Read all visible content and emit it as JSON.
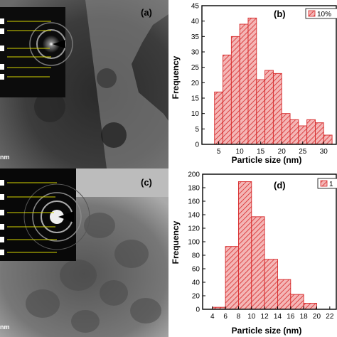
{
  "panels": {
    "a": {
      "label": "(a)",
      "scalebar_text": "nm"
    },
    "c": {
      "label": "(c)",
      "scalebar_text": "nm"
    }
  },
  "chart_data": [
    {
      "type": "bar",
      "panel_label": "(b)",
      "legend": "10%",
      "xlabel": "Particle size (nm)",
      "ylabel": "Frequency",
      "xlim": [
        1,
        33
      ],
      "ylim": [
        0,
        45
      ],
      "xticks": [
        5,
        10,
        15,
        20,
        25,
        30
      ],
      "yticks": [
        0,
        5,
        10,
        15,
        20,
        25,
        30,
        35,
        40,
        45
      ],
      "bin_width": 2,
      "bins_start": [
        4,
        6,
        8,
        10,
        12,
        14,
        16,
        18,
        20,
        22,
        24,
        26,
        28,
        30
      ],
      "values": [
        17,
        29,
        35,
        39,
        41,
        21,
        24,
        23,
        10,
        8,
        6,
        8,
        7,
        3
      ],
      "color": "#d62728"
    },
    {
      "type": "bar",
      "panel_label": "(d)",
      "legend": "1",
      "xlabel": "Particle size (nm)",
      "ylabel": "Frequency",
      "xlim": [
        2.5,
        23
      ],
      "ylim": [
        0,
        200
      ],
      "xticks": [
        4,
        6,
        8,
        10,
        12,
        14,
        16,
        18,
        20,
        22
      ],
      "yticks": [
        0,
        20,
        40,
        60,
        80,
        100,
        120,
        140,
        160,
        180,
        200
      ],
      "bin_width": 2,
      "bins_start": [
        4,
        6,
        8,
        10,
        12,
        14,
        16,
        18
      ],
      "values": [
        3,
        93,
        189,
        137,
        74,
        44,
        22,
        9
      ],
      "color": "#d62728"
    }
  ],
  "colors": {
    "bar_fill": "#f4b6b6",
    "bar_edge": "#d62728",
    "hatch": "#d62728",
    "tem_dark": "#1d1d1d",
    "tem_light": "#bdbdbd",
    "inset_arrow": "#d4d400"
  }
}
